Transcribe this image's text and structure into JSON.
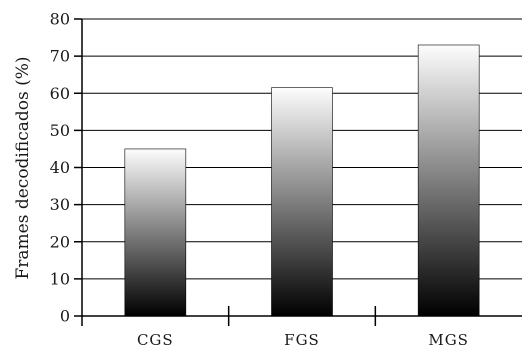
{
  "chart_data": {
    "type": "bar",
    "title": "",
    "xlabel": "",
    "ylabel": "Frames decodificados (%)",
    "categories": [
      "CGS",
      "FGS",
      "MGS"
    ],
    "values": [
      45,
      61.5,
      73
    ],
    "ylim": [
      0,
      80
    ],
    "yticks": [
      "0",
      "10",
      "20",
      "30",
      "40",
      "50",
      "60",
      "70",
      "80"
    ],
    "grid": "horizontal",
    "legend": "none",
    "bar_fill": "vertical gradient, black at bottom to white at top"
  },
  "colors": {
    "bar_gradient_top": "#fdfdfd",
    "bar_gradient_bottom": "#000000",
    "axis": "#000000",
    "grid": "#000000"
  }
}
